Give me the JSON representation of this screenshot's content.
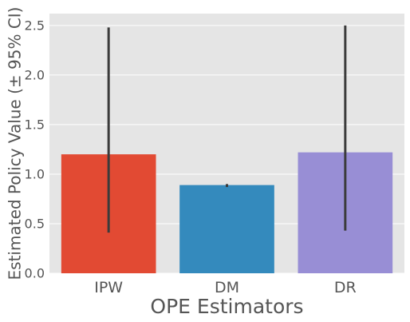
{
  "chart_data": {
    "type": "bar",
    "categories": [
      "IPW",
      "DM",
      "DR"
    ],
    "values": [
      1.2,
      0.89,
      1.22
    ],
    "ci_lower": [
      0.41,
      0.87,
      0.43
    ],
    "ci_upper": [
      2.48,
      0.9,
      2.5
    ],
    "bar_colors": [
      "#E24A33",
      "#348ABD",
      "#988ED5"
    ],
    "errorbar_color": "#3b3b3b",
    "background": "#E5E5E5",
    "grid": true,
    "grid_color": "#FFFFFF",
    "xlabel": "OPE Estimators",
    "ylabel": "Estimated Policy Value (± 95% CI)",
    "ylim": [
      0,
      2.62
    ],
    "yticks": [
      0.0,
      0.5,
      1.0,
      1.5,
      2.0,
      2.5
    ],
    "ytick_labels": [
      "0.0",
      "0.5",
      "1.0",
      "1.5",
      "2.0",
      "2.5"
    ]
  }
}
